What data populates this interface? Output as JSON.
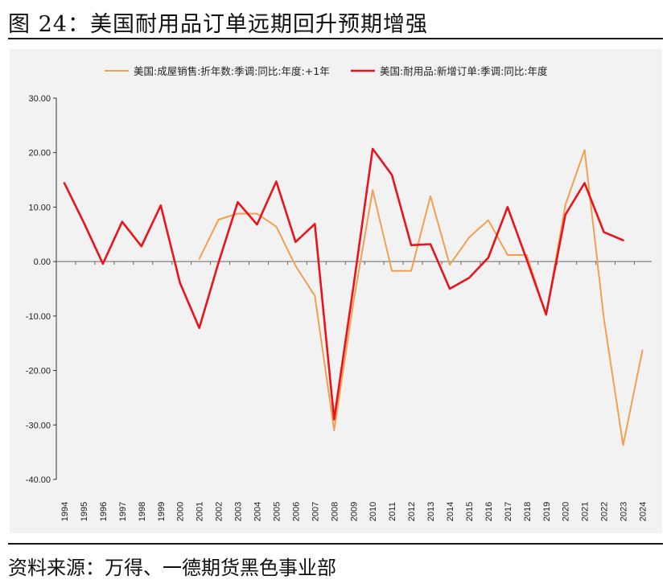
{
  "figure_title": "图 24：美国耐用品订单远期回升预期增强",
  "source": "资料来源：万得、一德期货黑色事业部",
  "chart_data": {
    "type": "line",
    "title": "",
    "xlabel": "",
    "ylabel": "",
    "ylim": [
      -40,
      30
    ],
    "yticks": [
      30,
      20,
      10,
      0,
      -10,
      -20,
      -30,
      -40
    ],
    "ytick_labels": [
      "30.00",
      "20.00",
      "10.00",
      "0.00",
      "-10.00",
      "-20.00",
      "-30.00",
      "-40.00"
    ],
    "categories": [
      "1994",
      "1995",
      "1996",
      "1997",
      "1998",
      "1999",
      "2000",
      "2001",
      "2002",
      "2003",
      "2004",
      "2005",
      "2006",
      "2007",
      "2008",
      "2009",
      "2010",
      "2011",
      "2012",
      "2013",
      "2014",
      "2015",
      "2016",
      "2017",
      "2018",
      "2019",
      "2020",
      "2021",
      "2022",
      "2023",
      "2024"
    ],
    "legend_position": "top",
    "series": [
      {
        "name": "美国:成屋销售:折年数:季调:同比:年度:+1年",
        "color": "#f0a050",
        "values": [
          null,
          null,
          null,
          null,
          null,
          null,
          null,
          0.5,
          7.7,
          8.8,
          8.8,
          6.4,
          -0.8,
          -6.3,
          -31.0,
          -7.5,
          13.1,
          -1.7,
          -1.7,
          12.0,
          -0.6,
          4.4,
          7.6,
          1.2,
          1.2,
          -9.9,
          10.4,
          20.5,
          -10.5,
          -33.7,
          -16.3
        ]
      },
      {
        "name": "美国:耐用品:新增订单:季调:同比:年度",
        "color": "#e8141c",
        "values": [
          14.4,
          7.2,
          -0.4,
          7.3,
          2.8,
          10.3,
          -3.9,
          -12.2,
          -0.2,
          10.9,
          6.8,
          14.7,
          3.6,
          6.9,
          -29.0,
          -4.6,
          20.7,
          15.9,
          3.0,
          3.2,
          -5.0,
          -3.0,
          0.7,
          10.0,
          0.3,
          -9.7,
          8.6,
          14.4,
          5.4,
          3.9,
          null
        ]
      }
    ]
  }
}
